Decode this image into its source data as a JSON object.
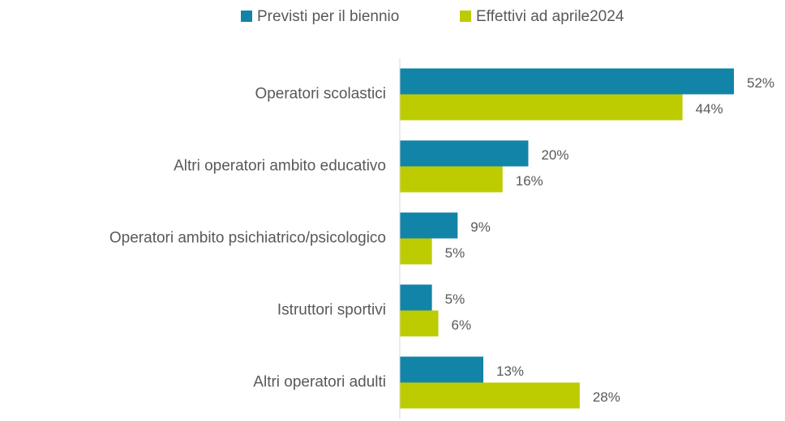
{
  "chart_data": {
    "type": "barh",
    "categories": [
      "Operatori scolastici",
      "Altri operatori ambito educativo",
      "Operatori ambito psichiatrico/psicologico",
      "Istruttori sportivi",
      "Altri operatori adulti"
    ],
    "series": [
      {
        "name": "Previsti per il biennio",
        "color": "#1284a7",
        "values": [
          52,
          20,
          9,
          5,
          13
        ],
        "value_labels": [
          "52%",
          "20%",
          "9%",
          "5%",
          "13%"
        ]
      },
      {
        "name": "Effettivi ad aprile2024",
        "color": "#bdcc00",
        "values": [
          44,
          16,
          5,
          6,
          28
        ],
        "value_labels": [
          "44%",
          "16%",
          "5%",
          "6%",
          "28%"
        ]
      }
    ],
    "xlim": [
      0,
      52
    ],
    "legend": "top"
  }
}
